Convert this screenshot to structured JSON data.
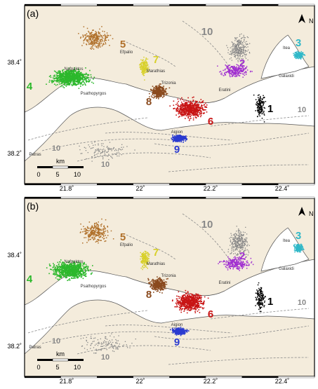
{
  "panels": [
    {
      "label": "(a)"
    },
    {
      "label": "(b)"
    }
  ],
  "axes": {
    "lat_ticks": [
      "38.4˚",
      "38.2˚"
    ],
    "lon_ticks": [
      "21.8˚",
      "22˚",
      "22.2˚",
      "22.4˚"
    ]
  },
  "north_arrow": "N",
  "scale_bar": {
    "unit": "km",
    "ticks": [
      "0",
      "5",
      "10"
    ]
  },
  "places": [
    "Nafpaktos",
    "Efpalio",
    "Marathias",
    "Trizonia",
    "Psathopyrgos",
    "Patras",
    "Aigion",
    "Eratini",
    "Galaxidi",
    "Itea"
  ],
  "colors": {
    "land": "#f4ecdc",
    "sea": "#ffffff",
    "faults": "#8a8a8a",
    "cluster_1": "#000000",
    "cluster_2": "#a02ed0",
    "cluster_3": "#30b8c8",
    "cluster_4": "#2cb82c",
    "cluster_5": "#b0702a",
    "cluster_6": "#c81414",
    "cluster_7": "#d8d02a",
    "cluster_8": "#8a4a1e",
    "cluster_9": "#2a3ad0",
    "cluster_10": "#888888"
  },
  "cluster_labels": [
    "1",
    "2",
    "3",
    "4",
    "5",
    "6",
    "7",
    "8",
    "9",
    "10"
  ]
}
